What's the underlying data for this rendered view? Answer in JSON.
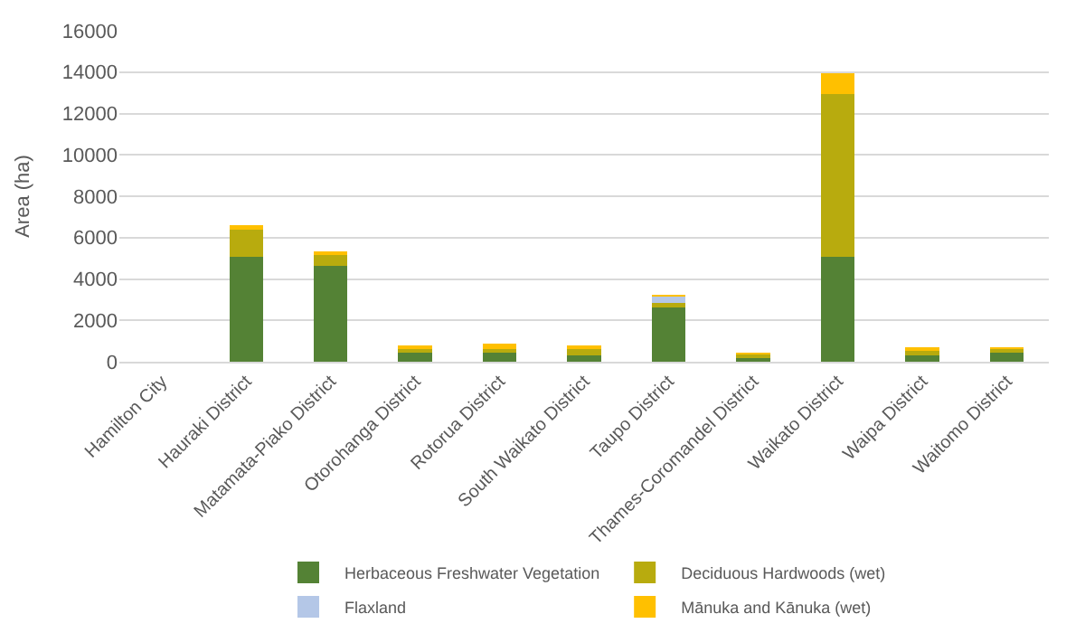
{
  "chart_data": {
    "type": "bar",
    "stacked": true,
    "ylabel": "Area (ha)",
    "categories": [
      "Hamilton City",
      "Hauraki District",
      "Matamata-Piako District",
      "Otorohanga District",
      "Rotorua District",
      "South Waikato District",
      "Taupo District",
      "Thames-Coromandel District",
      "Waikato District",
      "Waipa District",
      "Waitomo District"
    ],
    "series": [
      {
        "name": "Herbaceous Freshwater Vegetation",
        "color": "#548235",
        "values": [
          0,
          5050,
          4650,
          450,
          450,
          290,
          2630,
          260,
          5050,
          290,
          490
        ]
      },
      {
        "name": "Deciduous Hardwoods (wet)",
        "color": "#b8ab0e",
        "values": [
          0,
          1350,
          550,
          230,
          150,
          390,
          230,
          100,
          7900,
          300,
          130
        ]
      },
      {
        "name": "Flaxland",
        "color": "#b4c7e7",
        "values": [
          0,
          0,
          0,
          0,
          0,
          0,
          290,
          0,
          0,
          0,
          0
        ]
      },
      {
        "name": "Mānuka and Kānuka (wet)",
        "color": "#ffc000",
        "values": [
          0,
          200,
          50,
          80,
          280,
          40,
          70,
          60,
          1000,
          60,
          60
        ]
      }
    ],
    "ylim": [
      0,
      16000
    ],
    "yticks": [
      0,
      2000,
      4000,
      6000,
      8000,
      10000,
      12000,
      14000,
      16000
    ],
    "grid": "y",
    "legend": "bottom"
  }
}
